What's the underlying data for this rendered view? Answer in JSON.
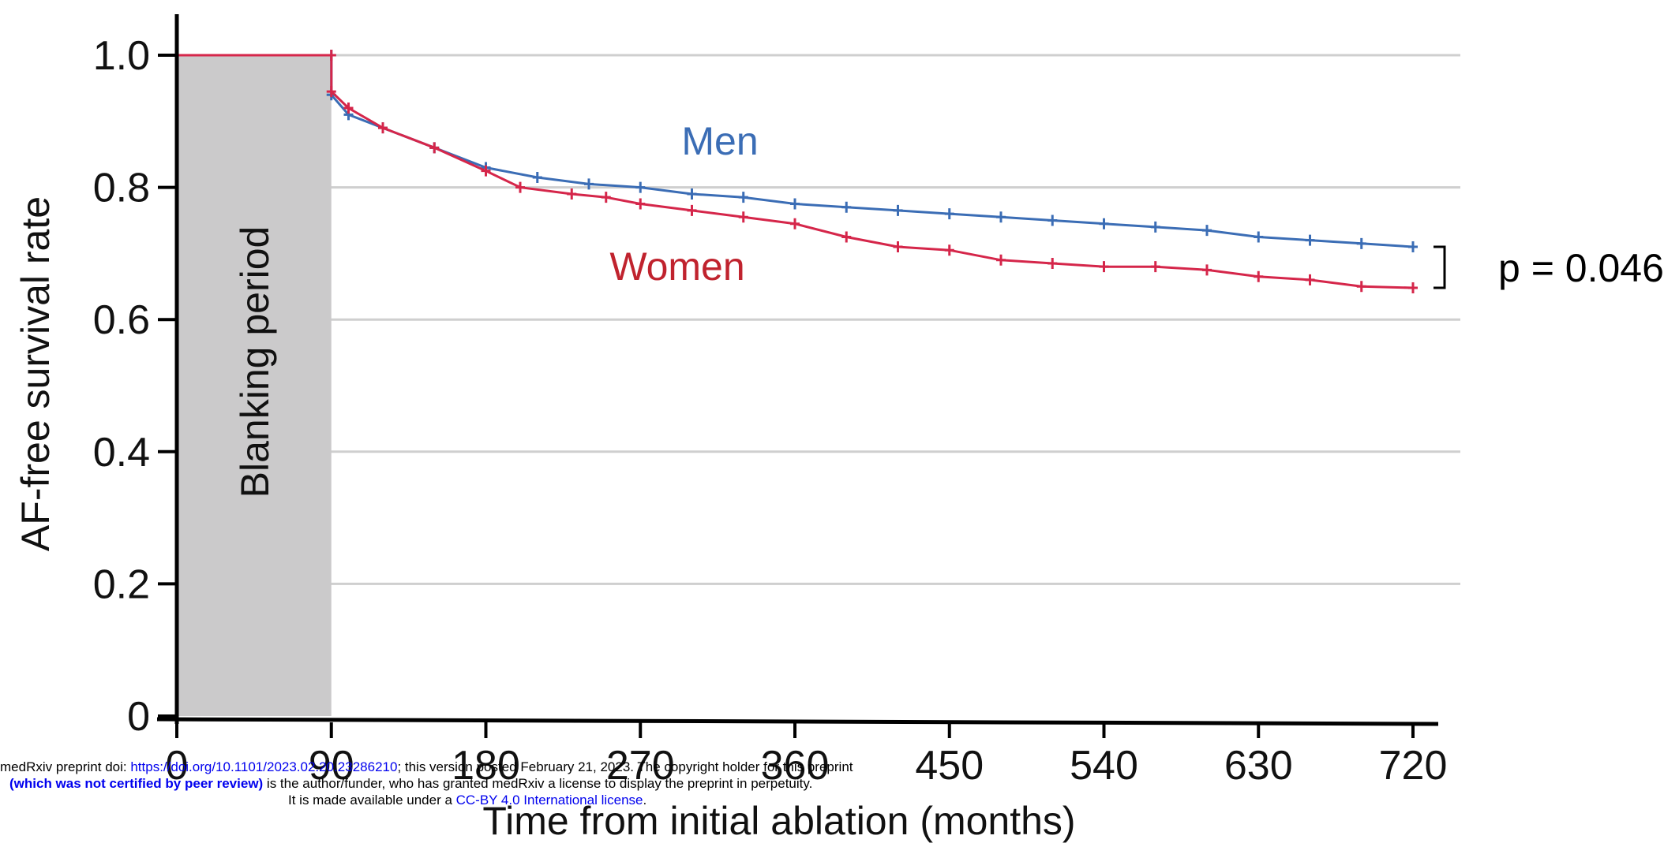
{
  "chart_data": {
    "type": "line",
    "ylabel": "AF-free survival rate",
    "xlabel": "Time from initial ablation (months)",
    "xlim": [
      0,
      720
    ],
    "ylim": [
      0,
      1.0
    ],
    "x_ticks": [
      0,
      90,
      180,
      270,
      360,
      450,
      540,
      630,
      720
    ],
    "y_ticks": [
      0,
      0.2,
      0.4,
      0.6,
      0.8,
      1.0
    ],
    "y_tick_labels": [
      "0",
      "0.2",
      "0.4",
      "0.6",
      "0.8",
      "1.0"
    ],
    "grid": "horizontal",
    "shaded_region": {
      "label": "Blanking period",
      "x_from": 0,
      "x_to": 90,
      "color": "#cbcacb"
    },
    "series": [
      {
        "name": "Men",
        "color": "#3b6db5",
        "x": [
          0,
          90,
          90,
          100,
          120,
          150,
          180,
          210,
          240,
          270,
          300,
          330,
          360,
          390,
          420,
          450,
          480,
          510,
          540,
          570,
          600,
          630,
          660,
          690,
          720
        ],
        "y": [
          1.0,
          1.0,
          0.94,
          0.91,
          0.89,
          0.86,
          0.83,
          0.815,
          0.805,
          0.8,
          0.79,
          0.785,
          0.775,
          0.77,
          0.765,
          0.76,
          0.755,
          0.75,
          0.745,
          0.74,
          0.735,
          0.725,
          0.72,
          0.715,
          0.71
        ]
      },
      {
        "name": "Women",
        "color": "#d5264a",
        "x": [
          0,
          90,
          90,
          100,
          120,
          150,
          180,
          200,
          230,
          250,
          270,
          300,
          330,
          360,
          390,
          420,
          450,
          480,
          510,
          540,
          570,
          600,
          630,
          660,
          690,
          720
        ],
        "y": [
          1.0,
          1.0,
          0.945,
          0.92,
          0.89,
          0.86,
          0.825,
          0.8,
          0.79,
          0.785,
          0.775,
          0.765,
          0.755,
          0.745,
          0.725,
          0.71,
          0.705,
          0.69,
          0.685,
          0.68,
          0.68,
          0.675,
          0.665,
          0.66,
          0.65,
          0.648
        ]
      }
    ],
    "annotations": [
      {
        "text": "Men",
        "color": "#3b6db5"
      },
      {
        "text": "Women",
        "color": "#c0232e"
      },
      {
        "text": "p = 0.046",
        "color": "#000000"
      }
    ]
  },
  "footer": {
    "line1_pre": "medRxiv preprint doi: ",
    "doi_link": "https://doi.org/10.1101/2023.02.20.23286210",
    "line1_post": "; this version posted February 21, 2023. The copyright holder for this preprint",
    "line2_bold": "(which was not certified by peer review)",
    "line2_post": " is the author/funder, who has granted medRxiv a license to display the preprint in perpetuity.",
    "line3_pre": "It is made available under a ",
    "license_link": "CC-BY 4.0 International license",
    "line3_post": "."
  }
}
